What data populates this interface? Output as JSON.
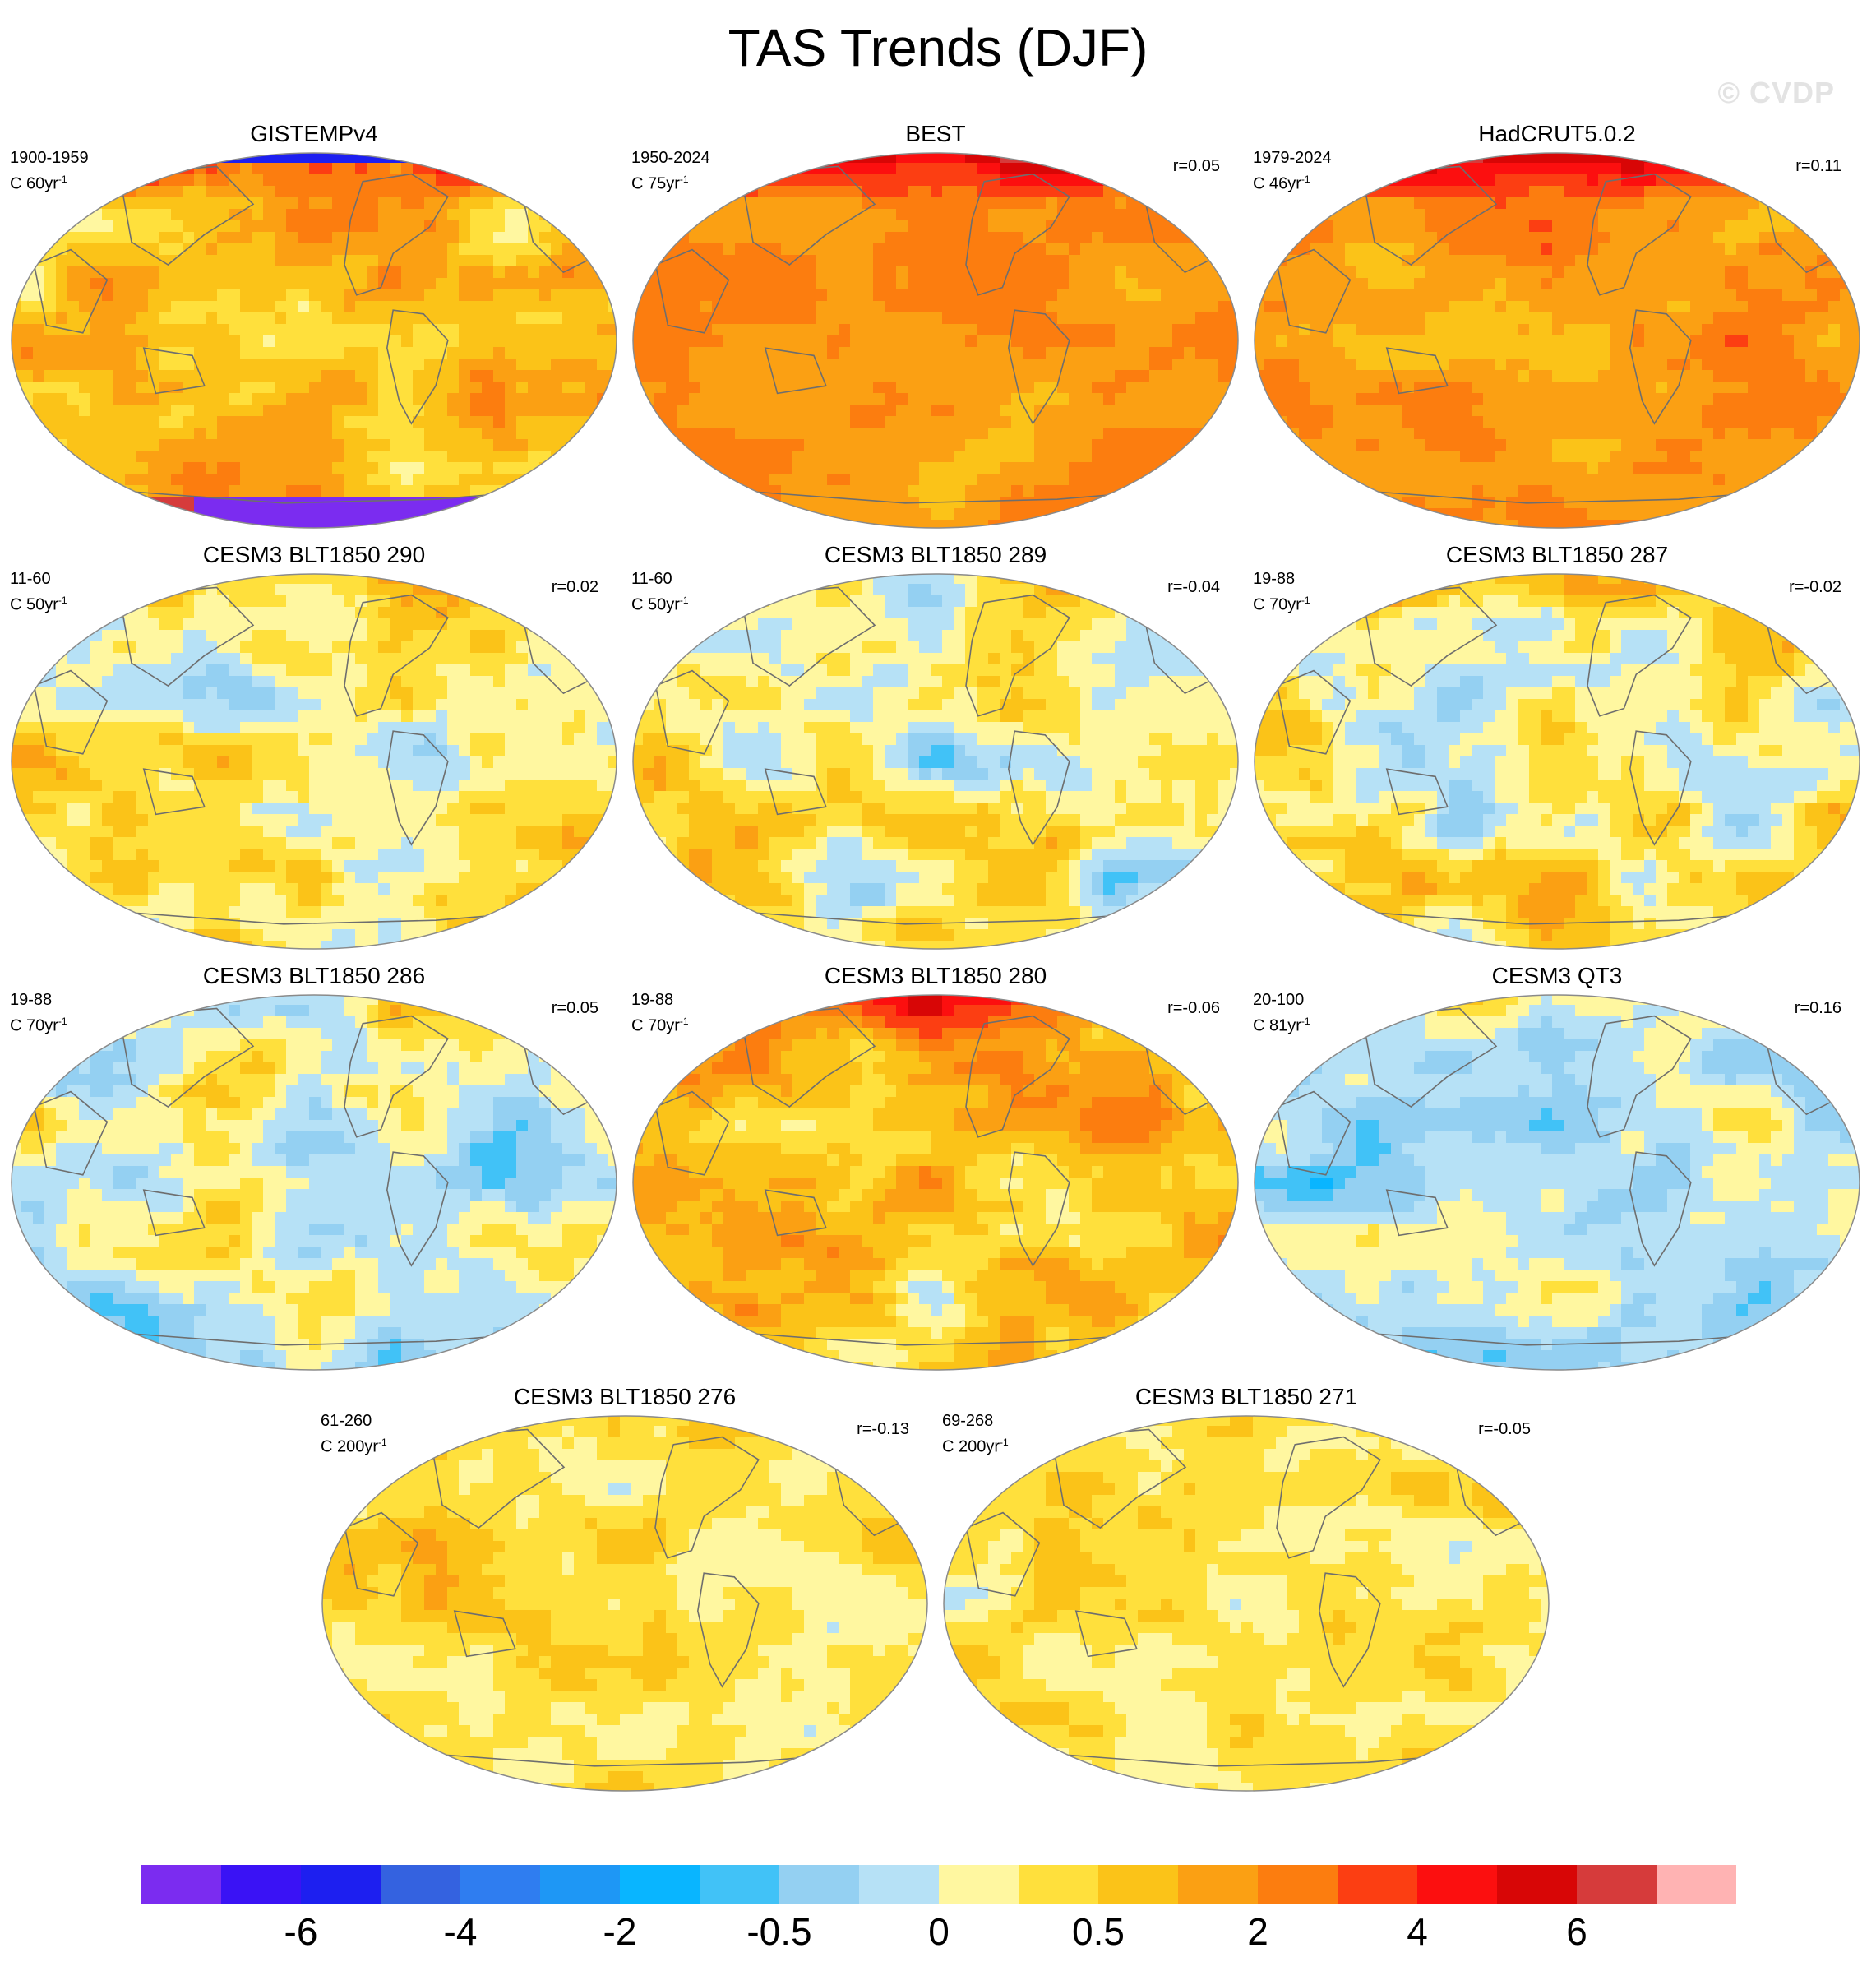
{
  "page": {
    "title": "TAS Trends (DJF)",
    "watermark": "© CVDP"
  },
  "chart_data": {
    "type": "heatmap",
    "title": "TAS Trends (DJF)",
    "projection": "Robinson-like global map",
    "panels": [
      {
        "title": "GISTEMPv4",
        "period": "1900-1959",
        "chunk_value": "C 60yr",
        "chunk_exp": "-1",
        "r": "",
        "pattern": "gistemp"
      },
      {
        "title": "BEST",
        "period": "1950-2024",
        "chunk_value": "C 75yr",
        "chunk_exp": "-1",
        "r": "r=0.05",
        "pattern": "best"
      },
      {
        "title": "HadCRUT5.0.2",
        "period": "1979-2024",
        "chunk_value": "C 46yr",
        "chunk_exp": "-1",
        "r": "r=0.11",
        "pattern": "hadcrut"
      },
      {
        "title": "CESM3 BLT1850 290",
        "period": "11-60",
        "chunk_value": "C 50yr",
        "chunk_exp": "-1",
        "r": "r=0.02",
        "pattern": "mixed_a"
      },
      {
        "title": "CESM3 BLT1850 289",
        "period": "11-60",
        "chunk_value": "C 50yr",
        "chunk_exp": "-1",
        "r": "r=-0.04",
        "pattern": "mixed_b"
      },
      {
        "title": "CESM3 BLT1850 287",
        "period": "19-88",
        "chunk_value": "C 70yr",
        "chunk_exp": "-1",
        "r": "r=-0.02",
        "pattern": "mixed_c"
      },
      {
        "title": "CESM3 BLT1850 286",
        "period": "19-88",
        "chunk_value": "C 70yr",
        "chunk_exp": "-1",
        "r": "r=0.05",
        "pattern": "cool_a"
      },
      {
        "title": "CESM3 BLT1850 280",
        "period": "19-88",
        "chunk_value": "C 70yr",
        "chunk_exp": "-1",
        "r": "r=-0.06",
        "pattern": "warm_a"
      },
      {
        "title": "CESM3 QT3",
        "period": "20-100",
        "chunk_value": "C 81yr",
        "chunk_exp": "-1",
        "r": "r=0.16",
        "pattern": "cool_b"
      },
      {
        "title": "CESM3 BLT1850 276",
        "period": "61-260",
        "chunk_value": "C 200yr",
        "chunk_exp": "-1",
        "r": "r=-0.13",
        "pattern": "mild_a"
      },
      {
        "title": "CESM3 BLT1850 271",
        "period": "69-268",
        "chunk_value": "C 200yr",
        "chunk_exp": "-1",
        "r": "r=-0.05",
        "pattern": "mild_b"
      }
    ],
    "colorbar": {
      "labels": [
        "-6",
        "-4",
        "-2",
        "-0.5",
        "0",
        "0.5",
        "2",
        "4",
        "6"
      ],
      "label_bin_edges": [
        2,
        4,
        6,
        8,
        10,
        12,
        14,
        16,
        18
      ],
      "colors": [
        "#7b2cf0",
        "#3a12f5",
        "#1d1ff0",
        "#3462e0",
        "#2f7df0",
        "#1e97f5",
        "#09b5ff",
        "#41c2f7",
        "#94d0f2",
        "#b6e1f6",
        "#fff7a0",
        "#ffe03c",
        "#fbc318",
        "#fba013",
        "#fc7d0f",
        "#fc3e12",
        "#fc0f0f",
        "#d80606",
        "#d63b3b",
        "#ffb3b3"
      ]
    }
  }
}
